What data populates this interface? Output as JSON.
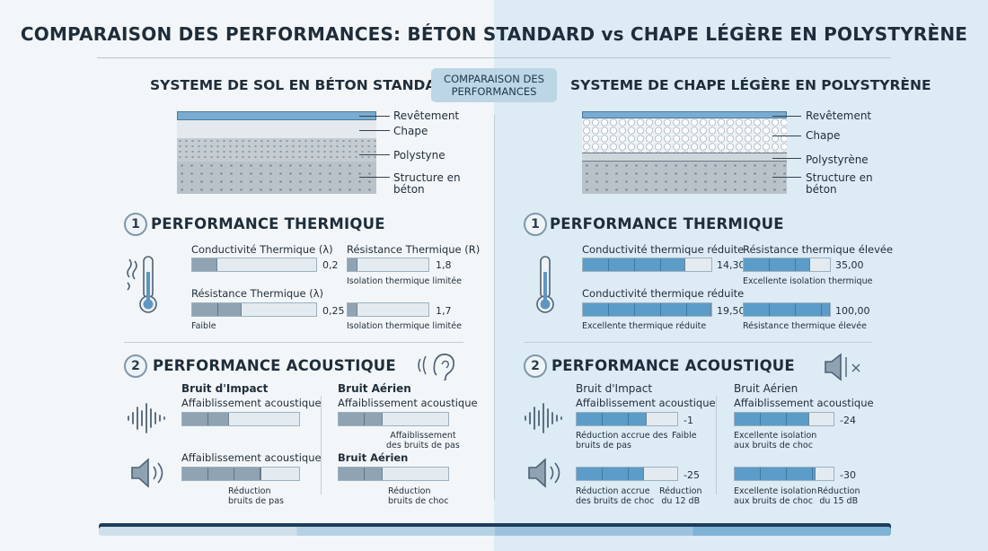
{
  "title": "COMPARAISON DES PERFORMANCES: BÉTON STANDARD vs CHAPE LÉGÈRE EN POLYSTYRÈNE",
  "center_badge": [
    "COMPARAISON DES",
    "PERFORMANCES"
  ],
  "left": {
    "heading": "SYSTEME DE SOL EN BÉTON STANDARD",
    "layers": [
      "Revêtement",
      "Chape",
      "Polystyne",
      "Structure en",
      "béton"
    ],
    "thermal": {
      "heading": "PERFORMANCE THERMIQUE",
      "number": "1",
      "m1_label": "Conductivité Thermique (λ)",
      "m1_value": "0,2",
      "m2_label": "Résistance Thermique (R)",
      "m2_value": "1,8",
      "m2_note": "Isolation thermique limitée",
      "m3_label": "Résistance Thermique (λ)",
      "m3_value": "0,25",
      "m3_note": "Faible",
      "m4_value": "1,7",
      "m4_note": "Isolation thermique limitée",
      "levels": [
        0.2,
        0.12,
        0.4,
        0.12
      ]
    },
    "acoustic": {
      "heading": "PERFORMANCE ACOUSTIQUE",
      "number": "2",
      "c1_title": "Bruit d'Impact",
      "c1_sub": "Affaiblissement acoustique",
      "c1_sub2": "Affaiblissement acoustique",
      "c1_note": [
        "Réduction",
        "bruits de pas"
      ],
      "c2_title": "Bruit Aérien",
      "c2_sub": "Affaiblissement acoustique",
      "c2_note1": [
        "Affaiblissement",
        "des bruits de pas"
      ],
      "c2_title2": "Bruit Aérien",
      "c2_note2": [
        "Réduction",
        "bruits de choc"
      ],
      "levels": [
        0.4,
        0.68,
        0.4,
        0.4
      ]
    }
  },
  "right": {
    "heading": "SYSTEME DE CHAPE LÉGÈRE EN POLYSTYRÈNE",
    "layers": [
      "Revêtement",
      "Chape",
      "Polystyrène",
      "Structure en",
      "béton"
    ],
    "thermal": {
      "heading": "PERFORMANCE THERMIQUE",
      "number": "1",
      "m1_label": "Conductivité thermique réduite",
      "m1_value": "14,30",
      "m2_label": "Résistance thermique élevée",
      "m2_value": "35,00",
      "m2_note": "Excellente isolation thermique",
      "m3_label": "Conductivité thermique réduite",
      "m3_value": "19,50",
      "m3_note": "Excellente thermique réduite",
      "m4_value": "100,00",
      "m4_note": "Résistance thermique élevée",
      "levels": [
        0.8,
        0.77,
        1.0,
        1.0
      ]
    },
    "acoustic": {
      "heading": "PERFORMANCE ACOUSTIQUE",
      "number": "2",
      "c1_title": "Bruit d'Impact",
      "c1_sub": "Affaiblissement acoustique",
      "c1_v1": "-1",
      "c1_note1a": [
        "Réduction accrue des",
        "bruits de pas"
      ],
      "c1_note1b": "Faible",
      "c1_v2": "-25",
      "c1_note2a": [
        "Réduction accrue",
        "des bruits de choc"
      ],
      "c1_note2b": [
        "Réduction",
        "du 12 dB"
      ],
      "c2_title": "Bruit Aérien",
      "c2_sub": "Affaiblissement acoustique",
      "c2_v1": "-24",
      "c2_note1": [
        "Excellente isolation",
        "aux bruits de choc"
      ],
      "c2_v2": "-30",
      "c2_note2a": [
        "Excellente isolation",
        "aux bruits de choc"
      ],
      "c2_note2b": [
        "Réduction",
        "du 15 dB"
      ],
      "levels": [
        0.7,
        0.67,
        0.75,
        0.82
      ]
    }
  },
  "colors": {
    "accent": "#5b9cc8",
    "grey_bar": "#8fa3b3",
    "dark": "#1e3d5c"
  }
}
